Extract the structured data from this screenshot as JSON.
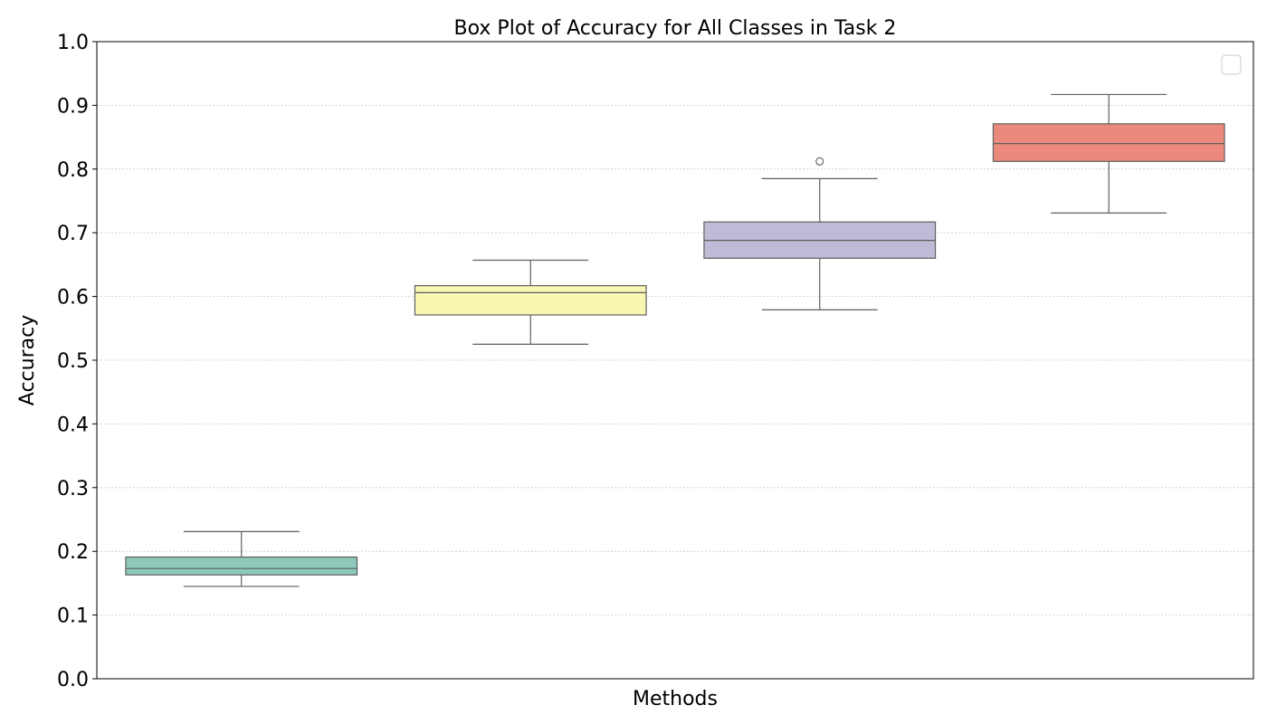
{
  "chart_data": {
    "type": "box",
    "title": "Box Plot of Accuracy for All Classes in Task 2",
    "xlabel": "Methods",
    "ylabel": "Accuracy",
    "ylim": [
      0.0,
      1.0
    ],
    "yticks": [
      "0.0",
      "0.1",
      "0.2",
      "0.3",
      "0.4",
      "0.5",
      "0.6",
      "0.7",
      "0.8",
      "0.9",
      "1.0"
    ],
    "grid": "y-dotted",
    "legend": {
      "placement": "top-right",
      "entries": []
    },
    "series": [
      {
        "color": "#8dc8bb",
        "whisker_low": 0.145,
        "q1": 0.163,
        "median": 0.173,
        "q3": 0.191,
        "whisker_high": 0.231,
        "outliers": []
      },
      {
        "color": "#f8f7b2",
        "whisker_low": 0.525,
        "q1": 0.571,
        "median": 0.606,
        "q3": 0.617,
        "whisker_high": 0.657,
        "outliers": []
      },
      {
        "color": "#bfbad6",
        "whisker_low": 0.579,
        "q1": 0.66,
        "median": 0.688,
        "q3": 0.717,
        "whisker_high": 0.785,
        "outliers": [
          0.812
        ]
      },
      {
        "color": "#eb8a7c",
        "whisker_low": 0.731,
        "q1": 0.812,
        "median": 0.84,
        "q3": 0.871,
        "whisker_high": 0.917,
        "outliers": []
      }
    ]
  }
}
